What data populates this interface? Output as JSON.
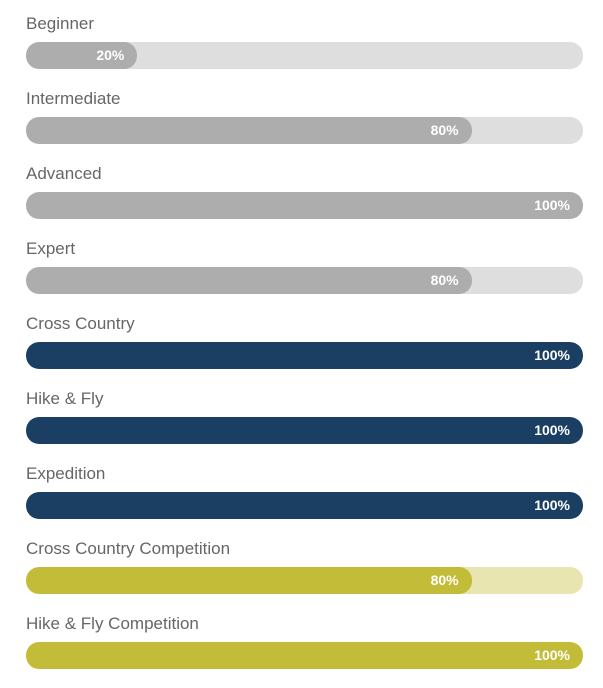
{
  "colors": {
    "gray_fill": "#adadad",
    "gray_track": "#dedede",
    "navy_fill": "#1a3f63",
    "navy_track": "#d1dbe6",
    "olive_fill": "#c3bc38",
    "olive_track": "#e8e5b1",
    "label_text": "#666666",
    "percent_text": "#ffffff"
  },
  "skills": [
    {
      "label": "Beginner",
      "value": 20,
      "value_text": "20%",
      "theme": "gray"
    },
    {
      "label": "Intermediate",
      "value": 80,
      "value_text": "80%",
      "theme": "gray"
    },
    {
      "label": "Advanced",
      "value": 100,
      "value_text": "100%",
      "theme": "gray"
    },
    {
      "label": "Expert",
      "value": 80,
      "value_text": "80%",
      "theme": "gray"
    },
    {
      "label": "Cross Country",
      "value": 100,
      "value_text": "100%",
      "theme": "navy"
    },
    {
      "label": "Hike & Fly",
      "value": 100,
      "value_text": "100%",
      "theme": "navy"
    },
    {
      "label": "Expedition",
      "value": 100,
      "value_text": "100%",
      "theme": "navy"
    },
    {
      "label": "Cross Country Competition",
      "value": 80,
      "value_text": "80%",
      "theme": "olive"
    },
    {
      "label": "Hike & Fly Competition",
      "value": 100,
      "value_text": "100%",
      "theme": "olive"
    }
  ]
}
